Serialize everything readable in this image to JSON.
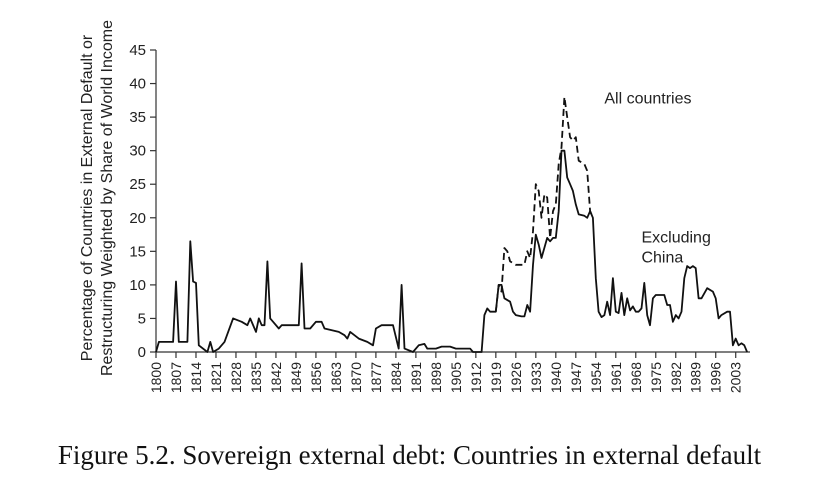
{
  "caption": "Figure 5.2. Sovereign external debt: Countries in external default",
  "chart_data": {
    "type": "line",
    "title": "",
    "xlabel": "",
    "ylabel_lines": [
      "Percentage of Countries in External Default or",
      "Restructuring Weighted by Share of World Income"
    ],
    "xlim": [
      1800,
      2008
    ],
    "ylim": [
      0,
      45
    ],
    "yticks": [
      0,
      5,
      10,
      15,
      20,
      25,
      30,
      35,
      40,
      45
    ],
    "xticks": [
      1800,
      1807,
      1814,
      1821,
      1828,
      1835,
      1842,
      1849,
      1856,
      1863,
      1870,
      1877,
      1884,
      1891,
      1898,
      1905,
      1912,
      1919,
      1926,
      1933,
      1940,
      1947,
      1954,
      1961,
      1968,
      1975,
      1982,
      1989,
      1996,
      2003
    ],
    "grid": false,
    "annotations": [
      {
        "text": "All countries",
        "x": 1957,
        "y": 37
      },
      {
        "text": "Excluding",
        "x": 1970,
        "y": 16.3
      },
      {
        "text": "China",
        "x": 1970,
        "y": 13.3
      }
    ],
    "series": [
      {
        "name": "Excluding China",
        "style": "solid",
        "points": [
          [
            1800,
            0
          ],
          [
            1801,
            1.5
          ],
          [
            1806,
            1.5
          ],
          [
            1807,
            10.5
          ],
          [
            1808,
            1.5
          ],
          [
            1811,
            1.5
          ],
          [
            1812,
            16.5
          ],
          [
            1813,
            10.5
          ],
          [
            1814,
            10.3
          ],
          [
            1815,
            1
          ],
          [
            1818,
            0
          ],
          [
            1819,
            1.5
          ],
          [
            1820,
            0
          ],
          [
            1822,
            0.5
          ],
          [
            1824,
            1.5
          ],
          [
            1827,
            5
          ],
          [
            1830,
            4.5
          ],
          [
            1832,
            4
          ],
          [
            1833,
            5
          ],
          [
            1835,
            3
          ],
          [
            1836,
            5
          ],
          [
            1837,
            4
          ],
          [
            1838,
            4
          ],
          [
            1839,
            13.5
          ],
          [
            1840,
            5
          ],
          [
            1841,
            4.5
          ],
          [
            1843,
            3.5
          ],
          [
            1844,
            4
          ],
          [
            1848,
            4
          ],
          [
            1850,
            4
          ],
          [
            1851,
            13.2
          ],
          [
            1852,
            3.5
          ],
          [
            1854,
            3.5
          ],
          [
            1856,
            4.5
          ],
          [
            1858,
            4.5
          ],
          [
            1859,
            3.5
          ],
          [
            1864,
            3
          ],
          [
            1866,
            2.5
          ],
          [
            1867,
            2
          ],
          [
            1868,
            3
          ],
          [
            1871,
            2
          ],
          [
            1874,
            1.5
          ],
          [
            1876,
            1
          ],
          [
            1877,
            3.5
          ],
          [
            1879,
            4
          ],
          [
            1883,
            4
          ],
          [
            1885,
            0.5
          ],
          [
            1886,
            10
          ],
          [
            1887,
            0.5
          ],
          [
            1890,
            0
          ],
          [
            1892,
            1
          ],
          [
            1894,
            1.2
          ],
          [
            1895,
            0.5
          ],
          [
            1898,
            0.5
          ],
          [
            1900,
            0.8
          ],
          [
            1903,
            0.8
          ],
          [
            1905,
            0.5
          ],
          [
            1908,
            0.5
          ],
          [
            1910,
            0.5
          ],
          [
            1911,
            0
          ],
          [
            1914,
            0
          ],
          [
            1915,
            5.5
          ],
          [
            1916,
            6.5
          ],
          [
            1917,
            6
          ],
          [
            1919,
            6
          ],
          [
            1920,
            10
          ],
          [
            1921,
            10
          ],
          [
            1922,
            8
          ],
          [
            1924,
            7.5
          ],
          [
            1925,
            6
          ],
          [
            1926,
            5.5
          ],
          [
            1928,
            5.3
          ],
          [
            1929,
            5.3
          ],
          [
            1930,
            7
          ],
          [
            1931,
            6
          ],
          [
            1932,
            13
          ],
          [
            1933,
            17.5
          ],
          [
            1934,
            16
          ],
          [
            1935,
            14
          ],
          [
            1937,
            17
          ],
          [
            1938,
            16.5
          ],
          [
            1939,
            17
          ],
          [
            1940,
            17
          ],
          [
            1941,
            21
          ],
          [
            1942,
            30
          ],
          [
            1943,
            30
          ],
          [
            1944,
            26
          ],
          [
            1945,
            25
          ],
          [
            1946,
            24
          ],
          [
            1947,
            22
          ],
          [
            1948,
            20.5
          ],
          [
            1950,
            20.3
          ],
          [
            1951,
            20
          ],
          [
            1952,
            21
          ],
          [
            1953,
            20
          ],
          [
            1954,
            11
          ],
          [
            1955,
            6
          ],
          [
            1956,
            5.2
          ],
          [
            1957,
            5.5
          ],
          [
            1958,
            7.5
          ],
          [
            1959,
            5.5
          ],
          [
            1960,
            11
          ],
          [
            1961,
            6
          ],
          [
            1962,
            5.8
          ],
          [
            1963,
            8.8
          ],
          [
            1964,
            5.5
          ],
          [
            1965,
            8
          ],
          [
            1966,
            6.2
          ],
          [
            1967,
            6.8
          ],
          [
            1968,
            6
          ],
          [
            1969,
            6
          ],
          [
            1970,
            6.5
          ],
          [
            1971,
            10.3
          ],
          [
            1972,
            5.5
          ],
          [
            1973,
            4
          ],
          [
            1974,
            8
          ],
          [
            1975,
            8.5
          ],
          [
            1978,
            8.5
          ],
          [
            1979,
            7
          ],
          [
            1980,
            7
          ],
          [
            1981,
            4.5
          ],
          [
            1982,
            5.5
          ],
          [
            1983,
            5
          ],
          [
            1984,
            6
          ],
          [
            1985,
            11
          ],
          [
            1986,
            12.8
          ],
          [
            1987,
            12.5
          ],
          [
            1988,
            12.8
          ],
          [
            1989,
            12.5
          ],
          [
            1990,
            8
          ],
          [
            1991,
            8
          ],
          [
            1993,
            9.5
          ],
          [
            1995,
            9
          ],
          [
            1996,
            8
          ],
          [
            1997,
            5
          ],
          [
            1998,
            5.5
          ],
          [
            2000,
            6
          ],
          [
            2001,
            6
          ],
          [
            2002,
            1
          ],
          [
            2003,
            2
          ],
          [
            2004,
            1
          ],
          [
            2005,
            1.3
          ],
          [
            2006,
            1
          ],
          [
            2007,
            0
          ]
        ]
      },
      {
        "name": "All countries",
        "style": "dashed",
        "points": [
          [
            1919,
            6
          ],
          [
            1920,
            10
          ],
          [
            1921,
            9
          ],
          [
            1922,
            15.5
          ],
          [
            1923,
            15
          ],
          [
            1924,
            13.5
          ],
          [
            1926,
            13
          ],
          [
            1929,
            13
          ],
          [
            1930,
            15
          ],
          [
            1931,
            14
          ],
          [
            1932,
            18
          ],
          [
            1933,
            25
          ],
          [
            1934,
            24
          ],
          [
            1935,
            20
          ],
          [
            1936,
            23.5
          ],
          [
            1937,
            23
          ],
          [
            1938,
            17
          ],
          [
            1939,
            21
          ],
          [
            1940,
            22
          ],
          [
            1941,
            28
          ],
          [
            1942,
            30.5
          ],
          [
            1943,
            38
          ],
          [
            1944,
            35
          ],
          [
            1945,
            32
          ],
          [
            1946,
            31.5
          ],
          [
            1947,
            32
          ],
          [
            1948,
            28.5
          ],
          [
            1950,
            28
          ],
          [
            1951,
            27
          ],
          [
            1952,
            21
          ],
          [
            1953,
            20
          ]
        ]
      }
    ]
  }
}
